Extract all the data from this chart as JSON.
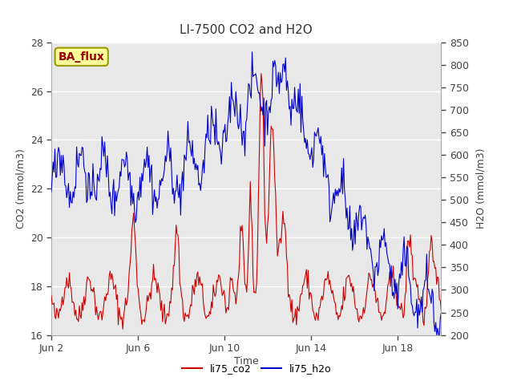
{
  "title": "LI-7500 CO2 and H2O",
  "xlabel": "Time",
  "ylabel_left": "CO2 (mmol/m3)",
  "ylabel_right": "H2O (mmol/m3)",
  "ylim_left": [
    16,
    28
  ],
  "ylim_right": [
    200,
    850
  ],
  "yticks_left": [
    16,
    18,
    20,
    22,
    24,
    26,
    28
  ],
  "yticks_right": [
    200,
    250,
    300,
    350,
    400,
    450,
    500,
    550,
    600,
    650,
    700,
    750,
    800,
    850
  ],
  "xtick_positions": [
    0,
    4,
    8,
    12,
    16
  ],
  "xtick_labels": [
    "Jun 2",
    "Jun 6",
    "Jun 10",
    "Jun 14",
    "Jun 18"
  ],
  "xlim": [
    0,
    18
  ],
  "co2_color": "#cc0000",
  "h2o_color": "#0000cc",
  "fig_bg_color": "#ffffff",
  "plot_bg_color": "#e8e8e8",
  "grid_color": "#ffffff",
  "annotation_text": "BA_flux",
  "annotation_bg": "#ffff99",
  "annotation_border": "#999900",
  "annotation_text_color": "#990000",
  "legend_entries": [
    "li75_co2",
    "li75_h2o"
  ],
  "title_fontsize": 11,
  "label_fontsize": 9,
  "tick_fontsize": 9
}
